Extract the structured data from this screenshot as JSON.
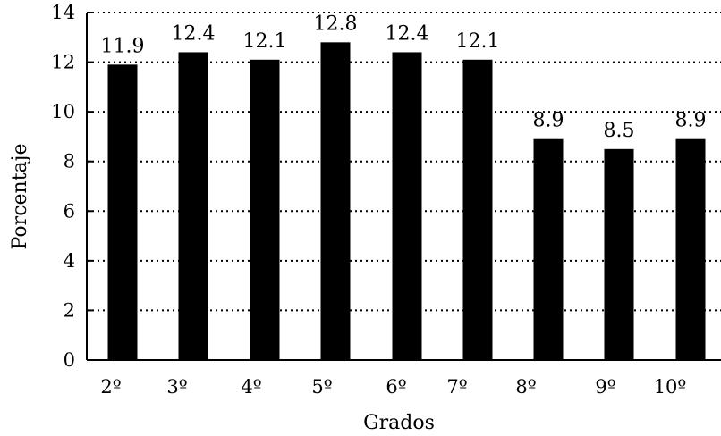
{
  "chart_data": {
    "type": "bar",
    "categories": [
      "2º",
      "3º",
      "4º",
      "5º",
      "6º",
      "7º",
      "8º",
      "9º",
      "10º"
    ],
    "values": [
      11.9,
      12.4,
      12.1,
      12.8,
      12.4,
      12.1,
      8.9,
      8.5,
      8.9
    ],
    "data_labels": [
      "11.9",
      "12.4",
      "12.1",
      "12.8",
      "12.4",
      "12.1",
      "8.9",
      "8.5",
      "8.9"
    ],
    "title": "",
    "xlabel": "Grados",
    "ylabel": "Porcentaje",
    "ylim": [
      0,
      14
    ],
    "yticks": [
      0,
      2,
      4,
      6,
      8,
      10,
      12,
      14
    ],
    "grid": "horizontal dotted",
    "legend": "none",
    "colors": {
      "bar": "#000000",
      "grid": "#000000",
      "background": "#ffffff"
    }
  }
}
